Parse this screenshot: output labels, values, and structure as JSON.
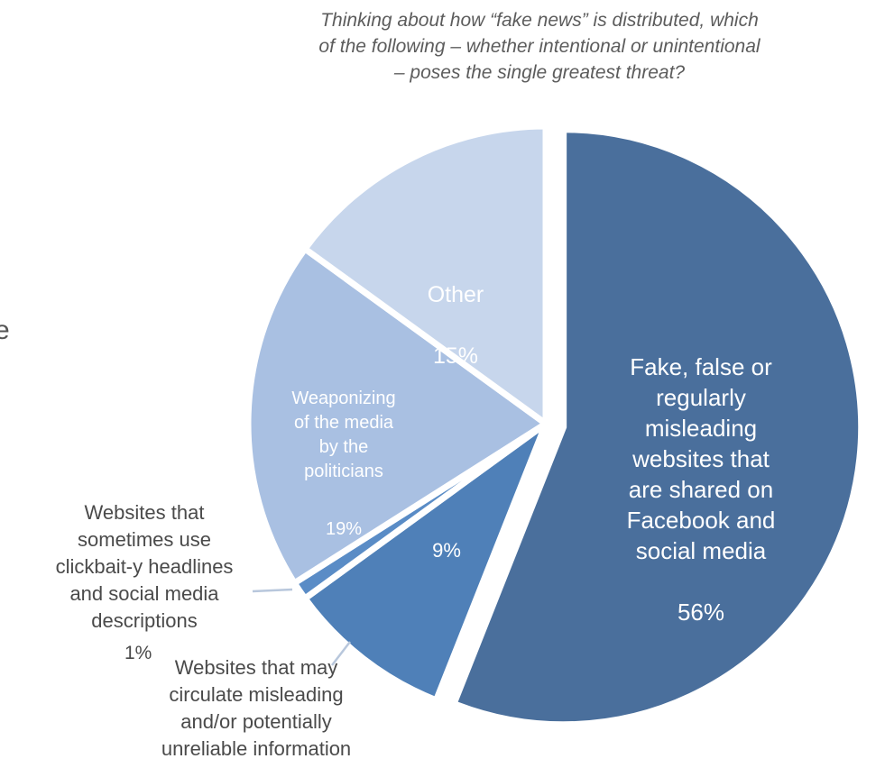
{
  "chart_data": {
    "type": "pie",
    "title": "Thinking about how “fake news” is distributed, which\nof the following – whether intentional or unintentional\n– poses the single greatest threat?",
    "start_angle_deg": 0,
    "direction": "clockwise",
    "slices": [
      {
        "key": "s56",
        "label": "Fake, false or\nregularly\nmisleading\nwebsites that\nare shared on\nFacebook and\nsocial media",
        "value": 56,
        "value_label": "56%",
        "color": "#4a6f9c",
        "explode": true
      },
      {
        "key": "s9",
        "label": "Websites that may\ncirculate misleading\nand/or potentially\nunreliable information",
        "value": 9,
        "value_label": "9%",
        "color": "#4f80b8",
        "explode": false
      },
      {
        "key": "s1",
        "label": "Websites that\nsometimes use\nclickbait-y headlines\nand social media\ndescriptions",
        "value": 1,
        "value_label": "1%",
        "color": "#5a8cc6",
        "explode": false
      },
      {
        "key": "s19",
        "label": "Weaponizing\nof the media\nby the\npoliticians",
        "value": 19,
        "value_label": "19%",
        "color": "#a9c0e2",
        "explode": false
      },
      {
        "key": "s15",
        "label": "Other",
        "value": 15,
        "value_label": "15%",
        "color": "#c7d6ec",
        "explode": false
      }
    ]
  },
  "edge_glyph": "e"
}
